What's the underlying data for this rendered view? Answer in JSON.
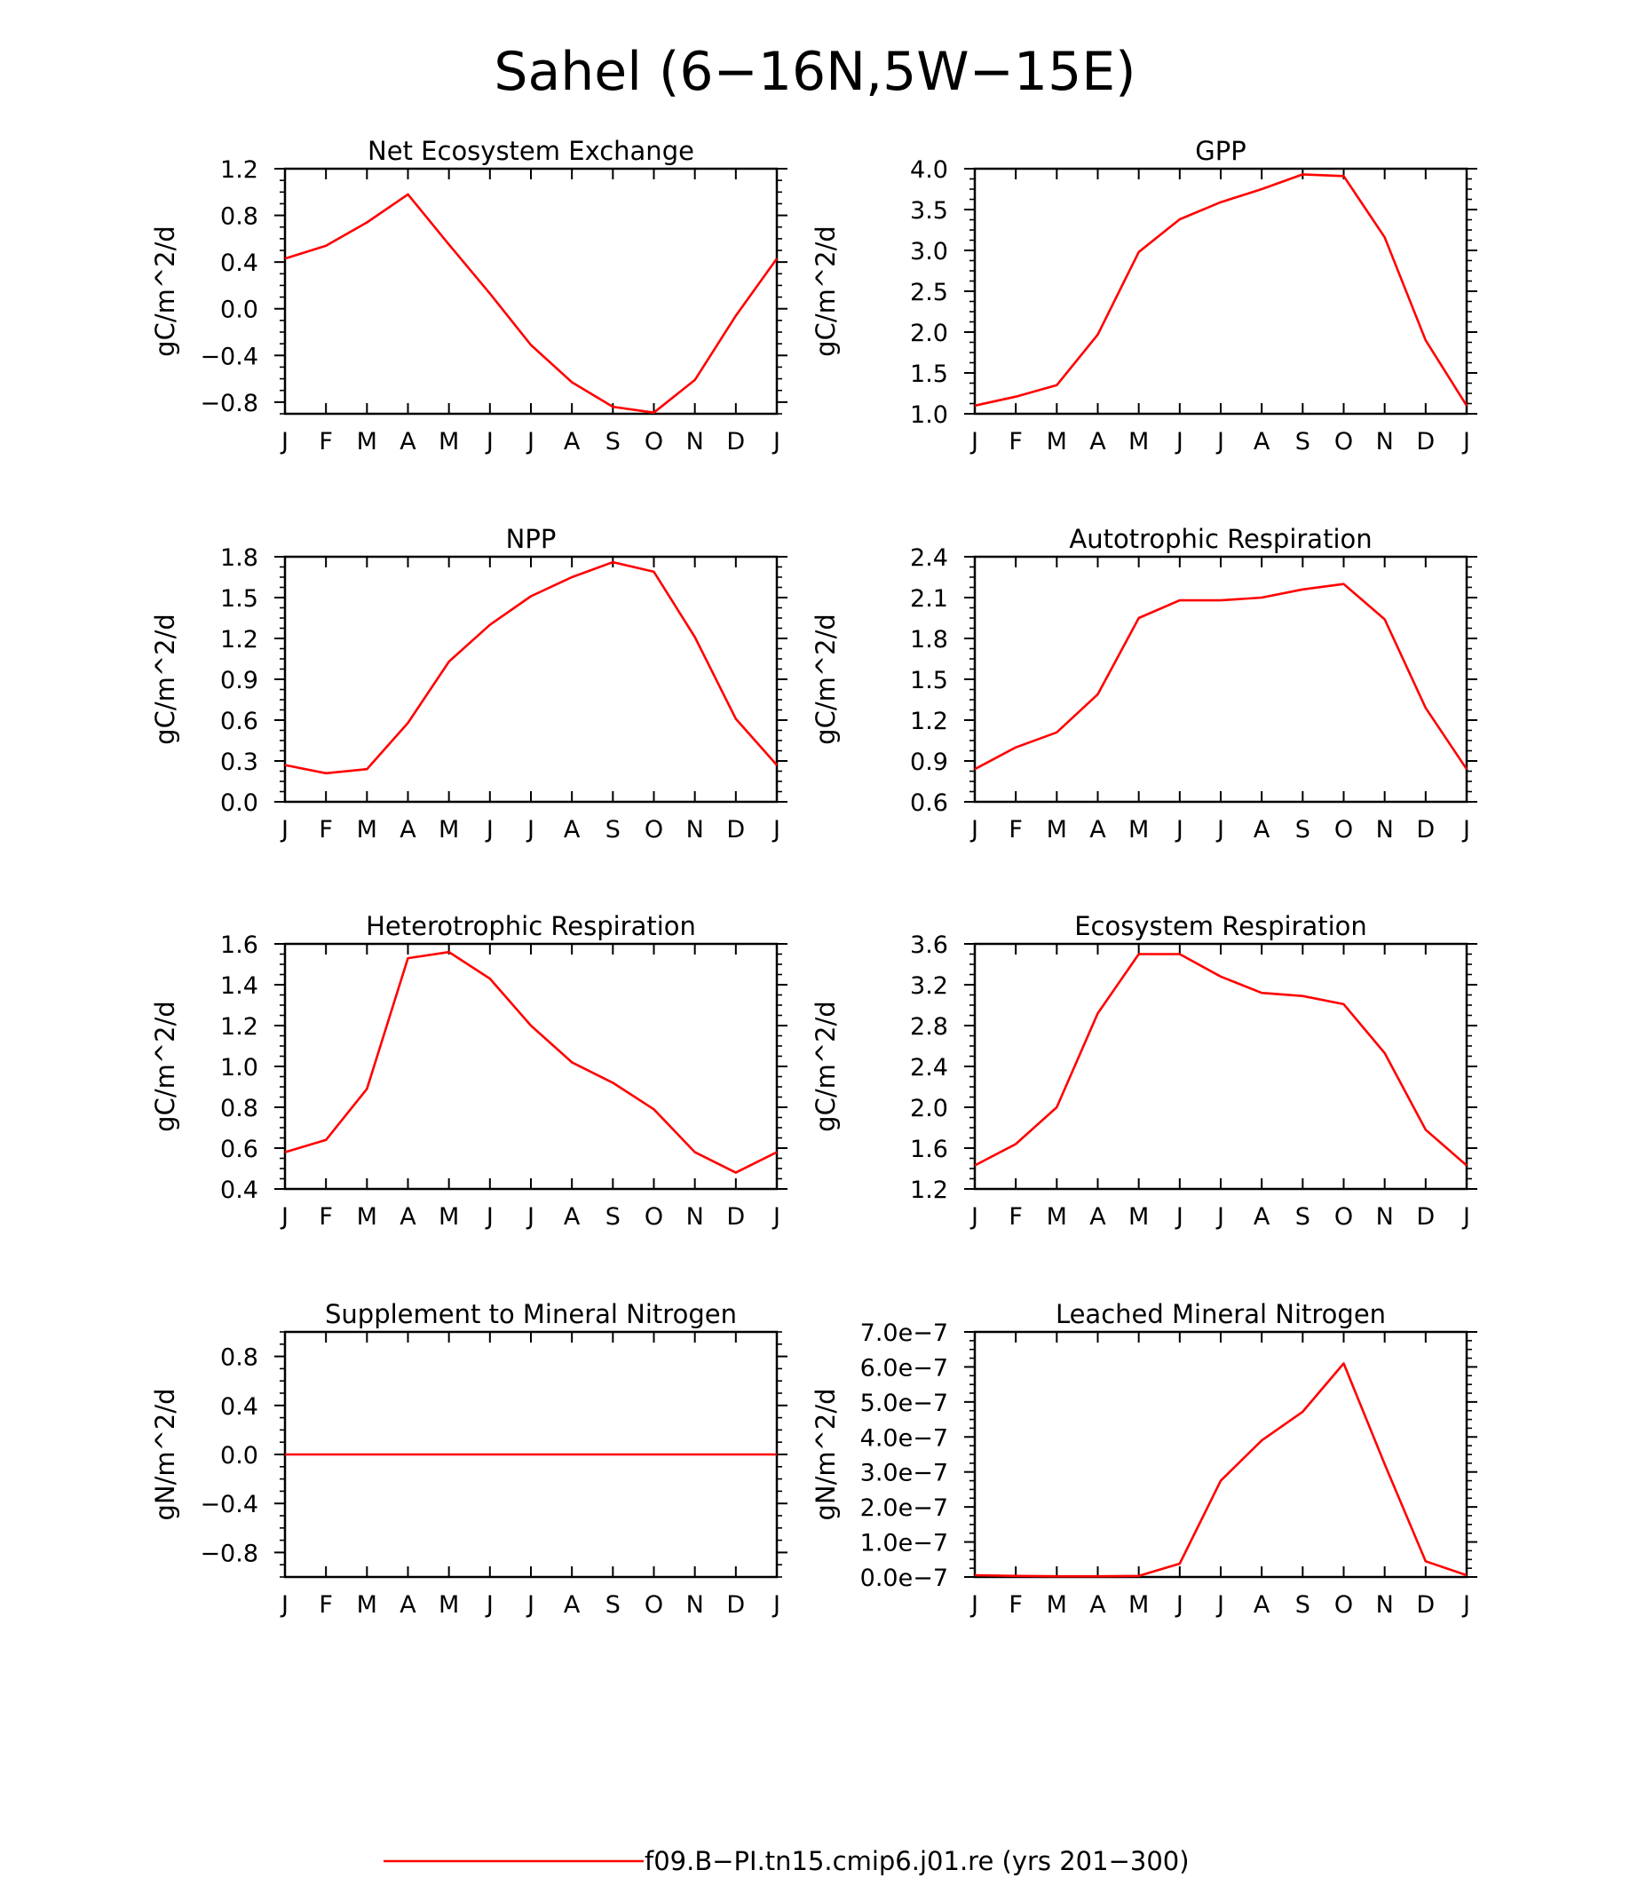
{
  "figure": {
    "title": "Sahel (6−16N,5W−15E)",
    "line_color": "#ff0000",
    "legend": {
      "label": "f09.B−PI.tn15.cmip6.j01.re (yrs 201−300)"
    }
  },
  "chart_data": [
    {
      "type": "line",
      "title": "Net Ecosystem Exchange",
      "ylabel": "gC/m^2/d",
      "categories": [
        "J",
        "F",
        "M",
        "A",
        "M",
        "J",
        "J",
        "A",
        "S",
        "O",
        "N",
        "D",
        "J"
      ],
      "ylim": [
        -0.9,
        1.2
      ],
      "yticks": [
        -0.8,
        -0.4,
        0.0,
        0.4,
        0.8,
        1.2
      ],
      "ytick_labels": [
        "−0.8",
        "−0.4",
        "0.0",
        "0.4",
        "0.8",
        "1.2"
      ],
      "values": [
        0.43,
        0.54,
        0.74,
        0.98,
        0.55,
        0.13,
        -0.31,
        -0.63,
        -0.84,
        -0.89,
        -0.61,
        -0.06,
        0.43
      ]
    },
    {
      "type": "line",
      "title": "GPP",
      "ylabel": "gC/m^2/d",
      "categories": [
        "J",
        "F",
        "M",
        "A",
        "M",
        "J",
        "J",
        "A",
        "S",
        "O",
        "N",
        "D",
        "J"
      ],
      "ylim": [
        1.0,
        4.0
      ],
      "yticks": [
        1.0,
        1.5,
        2.0,
        2.5,
        3.0,
        3.5,
        4.0
      ],
      "ytick_labels": [
        "1.0",
        "1.5",
        "2.0",
        "2.5",
        "3.0",
        "3.5",
        "4.0"
      ],
      "values": [
        1.1,
        1.21,
        1.35,
        1.97,
        2.98,
        3.38,
        3.59,
        3.75,
        3.93,
        3.91,
        3.16,
        1.9,
        1.1
      ]
    },
    {
      "type": "line",
      "title": "NPP",
      "ylabel": "gC/m^2/d",
      "categories": [
        "J",
        "F",
        "M",
        "A",
        "M",
        "J",
        "J",
        "A",
        "S",
        "O",
        "N",
        "D",
        "J"
      ],
      "ylim": [
        0.0,
        1.8
      ],
      "yticks": [
        0.0,
        0.3,
        0.6,
        0.9,
        1.2,
        1.5,
        1.8
      ],
      "ytick_labels": [
        "0.0",
        "0.3",
        "0.6",
        "0.9",
        "1.2",
        "1.5",
        "1.8"
      ],
      "values": [
        0.27,
        0.21,
        0.24,
        0.58,
        1.03,
        1.3,
        1.51,
        1.65,
        1.76,
        1.69,
        1.21,
        0.61,
        0.27
      ]
    },
    {
      "type": "line",
      "title": "Autotrophic Respiration",
      "ylabel": "gC/m^2/d",
      "categories": [
        "J",
        "F",
        "M",
        "A",
        "M",
        "J",
        "J",
        "A",
        "S",
        "O",
        "N",
        "D",
        "J"
      ],
      "ylim": [
        0.6,
        2.4
      ],
      "yticks": [
        0.6,
        0.9,
        1.2,
        1.5,
        1.8,
        2.1,
        2.4
      ],
      "ytick_labels": [
        "0.6",
        "0.9",
        "1.2",
        "1.5",
        "1.8",
        "2.1",
        "2.4"
      ],
      "values": [
        0.84,
        1.0,
        1.11,
        1.39,
        1.95,
        2.08,
        2.08,
        2.1,
        2.16,
        2.2,
        1.94,
        1.29,
        0.84
      ]
    },
    {
      "type": "line",
      "title": "Heterotrophic Respiration",
      "ylabel": "gC/m^2/d",
      "categories": [
        "J",
        "F",
        "M",
        "A",
        "M",
        "J",
        "J",
        "A",
        "S",
        "O",
        "N",
        "D",
        "J"
      ],
      "ylim": [
        0.4,
        1.6
      ],
      "yticks": [
        0.4,
        0.6,
        0.8,
        1.0,
        1.2,
        1.4,
        1.6
      ],
      "ytick_labels": [
        "0.4",
        "0.6",
        "0.8",
        "1.0",
        "1.2",
        "1.4",
        "1.6"
      ],
      "values": [
        0.58,
        0.64,
        0.89,
        1.53,
        1.56,
        1.43,
        1.2,
        1.02,
        0.92,
        0.79,
        0.58,
        0.48,
        0.58
      ]
    },
    {
      "type": "line",
      "title": "Ecosystem Respiration",
      "ylabel": "gC/m^2/d",
      "categories": [
        "J",
        "F",
        "M",
        "A",
        "M",
        "J",
        "J",
        "A",
        "S",
        "O",
        "N",
        "D",
        "J"
      ],
      "ylim": [
        1.2,
        3.6
      ],
      "yticks": [
        1.2,
        1.6,
        2.0,
        2.4,
        2.8,
        3.2,
        3.6
      ],
      "ytick_labels": [
        "1.2",
        "1.6",
        "2.0",
        "2.4",
        "2.8",
        "3.2",
        "3.6"
      ],
      "values": [
        1.43,
        1.64,
        2.0,
        2.92,
        3.5,
        3.5,
        3.28,
        3.12,
        3.09,
        3.01,
        2.53,
        1.78,
        1.43
      ]
    },
    {
      "type": "line",
      "title": "Supplement to Mineral Nitrogen",
      "ylabel": "gN/m^2/d",
      "categories": [
        "J",
        "F",
        "M",
        "A",
        "M",
        "J",
        "J",
        "A",
        "S",
        "O",
        "N",
        "D",
        "J"
      ],
      "ylim": [
        -1.0,
        1.0
      ],
      "yticks": [
        -0.8,
        -0.4,
        0.0,
        0.4,
        0.8
      ],
      "ytick_labels": [
        "−0.8",
        "−0.4",
        "0.0",
        "0.4",
        "0.8"
      ],
      "values": [
        0,
        0,
        0,
        0,
        0,
        0,
        0,
        0,
        0,
        0,
        0,
        0,
        0
      ]
    },
    {
      "type": "line",
      "title": "Leached Mineral Nitrogen",
      "ylabel": "gN/m^2/d",
      "categories": [
        "J",
        "F",
        "M",
        "A",
        "M",
        "J",
        "J",
        "A",
        "S",
        "O",
        "N",
        "D",
        "J"
      ],
      "ylim": [
        0,
        7e-07
      ],
      "yticks": [
        0,
        1e-07,
        2e-07,
        3e-07,
        4e-07,
        5e-07,
        6e-07,
        7e-07
      ],
      "ytick_labels": [
        "0.0e−7",
        "1.0e−7",
        "2.0e−7",
        "3.0e−7",
        "4.0e−7",
        "5.0e−7",
        "6.0e−7",
        "7.0e−7"
      ],
      "values": [
        5e-09,
        3e-09,
        2e-09,
        2e-09,
        3e-09,
        3.8e-08,
        2.75e-07,
        3.9e-07,
        4.72e-07,
        6.1e-07,
        3.22e-07,
        4.5e-08,
        5e-09
      ]
    }
  ]
}
